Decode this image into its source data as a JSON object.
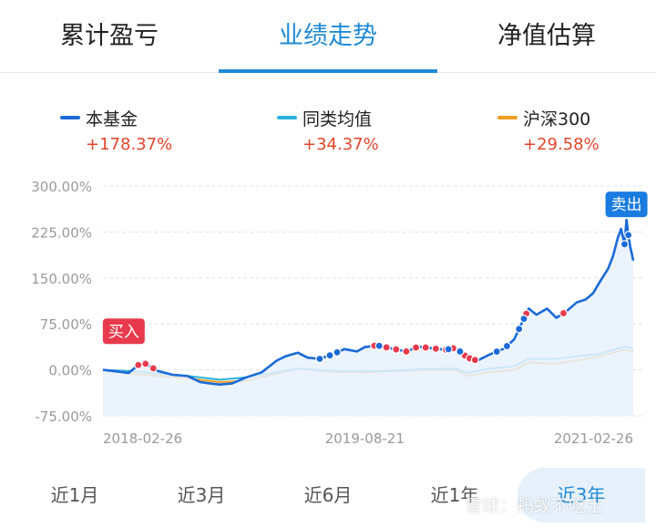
{
  "tabs": [
    {
      "label": "累计盈亏"
    },
    {
      "label": "业绩走势"
    },
    {
      "label": "净值估算"
    }
  ],
  "legend": [
    {
      "name": "本基金",
      "value": "+178.37%",
      "color": "#1a6ad8"
    },
    {
      "name": "同类均值",
      "value": "+34.37%",
      "color": "#2bb1dd"
    },
    {
      "name": "沪深300",
      "value": "+29.58%",
      "color": "#f0a020"
    }
  ],
  "chart_data": {
    "type": "line",
    "x_ticks": [
      "2018-02-26",
      "2019-08-21",
      "2021-02-26"
    ],
    "y_ticks": [
      "300.00%",
      "225.00%",
      "150.00%",
      "75.00%",
      "0.00%",
      "-75.00%"
    ],
    "ylim": [
      -75,
      300
    ],
    "xlim": [
      "2018-02-26",
      "2021-02-26"
    ],
    "grid": "horizontal dashed",
    "series": [
      {
        "name": "本基金",
        "color": "#1a6ad8",
        "area_fill": true,
        "points": [
          [
            "2018-02-26",
            0
          ],
          [
            "2018-03-20",
            -2
          ],
          [
            "2018-04-20",
            -5
          ],
          [
            "2018-05-10",
            8
          ],
          [
            "2018-05-25",
            10
          ],
          [
            "2018-06-20",
            -2
          ],
          [
            "2018-07-20",
            -8
          ],
          [
            "2018-08-20",
            -10
          ],
          [
            "2018-09-15",
            -20
          ],
          [
            "2018-10-05",
            -22
          ],
          [
            "2018-10-25",
            -24
          ],
          [
            "2018-11-20",
            -22
          ],
          [
            "2018-12-20",
            -12
          ],
          [
            "2019-01-20",
            -4
          ],
          [
            "2019-02-20",
            15
          ],
          [
            "2019-03-10",
            22
          ],
          [
            "2019-04-05",
            28
          ],
          [
            "2019-04-25",
            20
          ],
          [
            "2019-05-20",
            18
          ],
          [
            "2019-06-15",
            25
          ],
          [
            "2019-07-10",
            34
          ],
          [
            "2019-08-05",
            30
          ],
          [
            "2019-08-21",
            37
          ],
          [
            "2019-09-15",
            40
          ],
          [
            "2019-10-15",
            35
          ],
          [
            "2019-11-15",
            30
          ],
          [
            "2019-12-10",
            38
          ],
          [
            "2020-01-10",
            35
          ],
          [
            "2020-02-05",
            33
          ],
          [
            "2020-02-25",
            36
          ],
          [
            "2020-03-20",
            20
          ],
          [
            "2020-04-10",
            15
          ],
          [
            "2020-05-05",
            25
          ],
          [
            "2020-06-05",
            35
          ],
          [
            "2020-06-25",
            50
          ],
          [
            "2020-07-10",
            75
          ],
          [
            "2020-07-25",
            100
          ],
          [
            "2020-08-10",
            90
          ],
          [
            "2020-09-01",
            100
          ],
          [
            "2020-09-20",
            85
          ],
          [
            "2020-10-10",
            95
          ],
          [
            "2020-11-01",
            110
          ],
          [
            "2020-11-20",
            115
          ],
          [
            "2020-12-05",
            125
          ],
          [
            "2020-12-20",
            145
          ],
          [
            "2021-01-05",
            165
          ],
          [
            "2021-01-15",
            185
          ],
          [
            "2021-01-25",
            215
          ],
          [
            "2021-02-01",
            230
          ],
          [
            "2021-02-08",
            205
          ],
          [
            "2021-02-12",
            245
          ],
          [
            "2021-02-16",
            220
          ],
          [
            "2021-02-20",
            200
          ],
          [
            "2021-02-23",
            190
          ],
          [
            "2021-02-26",
            178.37
          ]
        ]
      },
      {
        "name": "同类均值",
        "color": "#2bb1dd",
        "area_fill": false,
        "points": [
          [
            "2018-02-26",
            0
          ],
          [
            "2018-04-20",
            -2
          ],
          [
            "2018-06-20",
            -6
          ],
          [
            "2018-08-20",
            -10
          ],
          [
            "2018-10-25",
            -16
          ],
          [
            "2018-12-20",
            -12
          ],
          [
            "2019-02-20",
            -4
          ],
          [
            "2019-04-05",
            2
          ],
          [
            "2019-06-15",
            -2
          ],
          [
            "2019-08-21",
            -2
          ],
          [
            "2019-10-15",
            -2
          ],
          [
            "2019-12-10",
            1
          ],
          [
            "2020-02-25",
            2
          ],
          [
            "2020-03-20",
            -5
          ],
          [
            "2020-05-05",
            2
          ],
          [
            "2020-06-25",
            6
          ],
          [
            "2020-07-25",
            18
          ],
          [
            "2020-09-20",
            18
          ],
          [
            "2020-11-20",
            24
          ],
          [
            "2020-12-20",
            26
          ],
          [
            "2021-01-25",
            35
          ],
          [
            "2021-02-12",
            38
          ],
          [
            "2021-02-26",
            34.37
          ]
        ]
      },
      {
        "name": "沪深300",
        "color": "#f0a020",
        "area_fill": false,
        "points": [
          [
            "2018-02-26",
            0
          ],
          [
            "2018-04-20",
            -6
          ],
          [
            "2018-06-20",
            -10
          ],
          [
            "2018-08-20",
            -14
          ],
          [
            "2018-10-25",
            -20
          ],
          [
            "2018-12-20",
            -18
          ],
          [
            "2019-02-20",
            -6
          ],
          [
            "2019-04-05",
            2
          ],
          [
            "2019-06-15",
            -3
          ],
          [
            "2019-08-21",
            -4
          ],
          [
            "2019-10-15",
            -2
          ],
          [
            "2019-12-10",
            0
          ],
          [
            "2020-02-25",
            0
          ],
          [
            "2020-03-20",
            -10
          ],
          [
            "2020-05-05",
            -4
          ],
          [
            "2020-06-25",
            0
          ],
          [
            "2020-07-25",
            12
          ],
          [
            "2020-09-20",
            10
          ],
          [
            "2020-11-20",
            18
          ],
          [
            "2020-12-20",
            22
          ],
          [
            "2021-01-25",
            30
          ],
          [
            "2021-02-12",
            33
          ],
          [
            "2021-02-26",
            29.58
          ]
        ]
      }
    ],
    "buy_dates": [
      "2018-05-10",
      "2018-05-25",
      "2018-06-10",
      "2019-09-10",
      "2019-10-05",
      "2019-10-25",
      "2019-11-15",
      "2019-12-05",
      "2019-12-25",
      "2020-01-15",
      "2020-02-05",
      "2020-02-20",
      "2020-03-15",
      "2020-03-25",
      "2020-04-05",
      "2020-07-20",
      "2020-10-05"
    ],
    "sell_dates": [
      "2019-05-20",
      "2019-06-10",
      "2019-06-25",
      "2019-09-20",
      "2020-02-10",
      "2020-03-05",
      "2020-05-20",
      "2020-06-10",
      "2020-07-05",
      "2020-07-15",
      "2021-02-08",
      "2021-02-16"
    ],
    "annotations": [
      {
        "text": "买入",
        "date": "2018-04-10",
        "value": 63,
        "color": "#e83a4d"
      },
      {
        "text": "卖出",
        "date": "2021-02-12",
        "value": 270,
        "color": "#1a7be0"
      }
    ]
  },
  "periods": [
    {
      "label": "近1月",
      "active": false
    },
    {
      "label": "近3月",
      "active": false
    },
    {
      "label": "近6月",
      "active": false
    },
    {
      "label": "近1年",
      "active": false
    },
    {
      "label": "近3年",
      "active": true
    }
  ],
  "watermark": "雪球：蚂蚁不吃土"
}
